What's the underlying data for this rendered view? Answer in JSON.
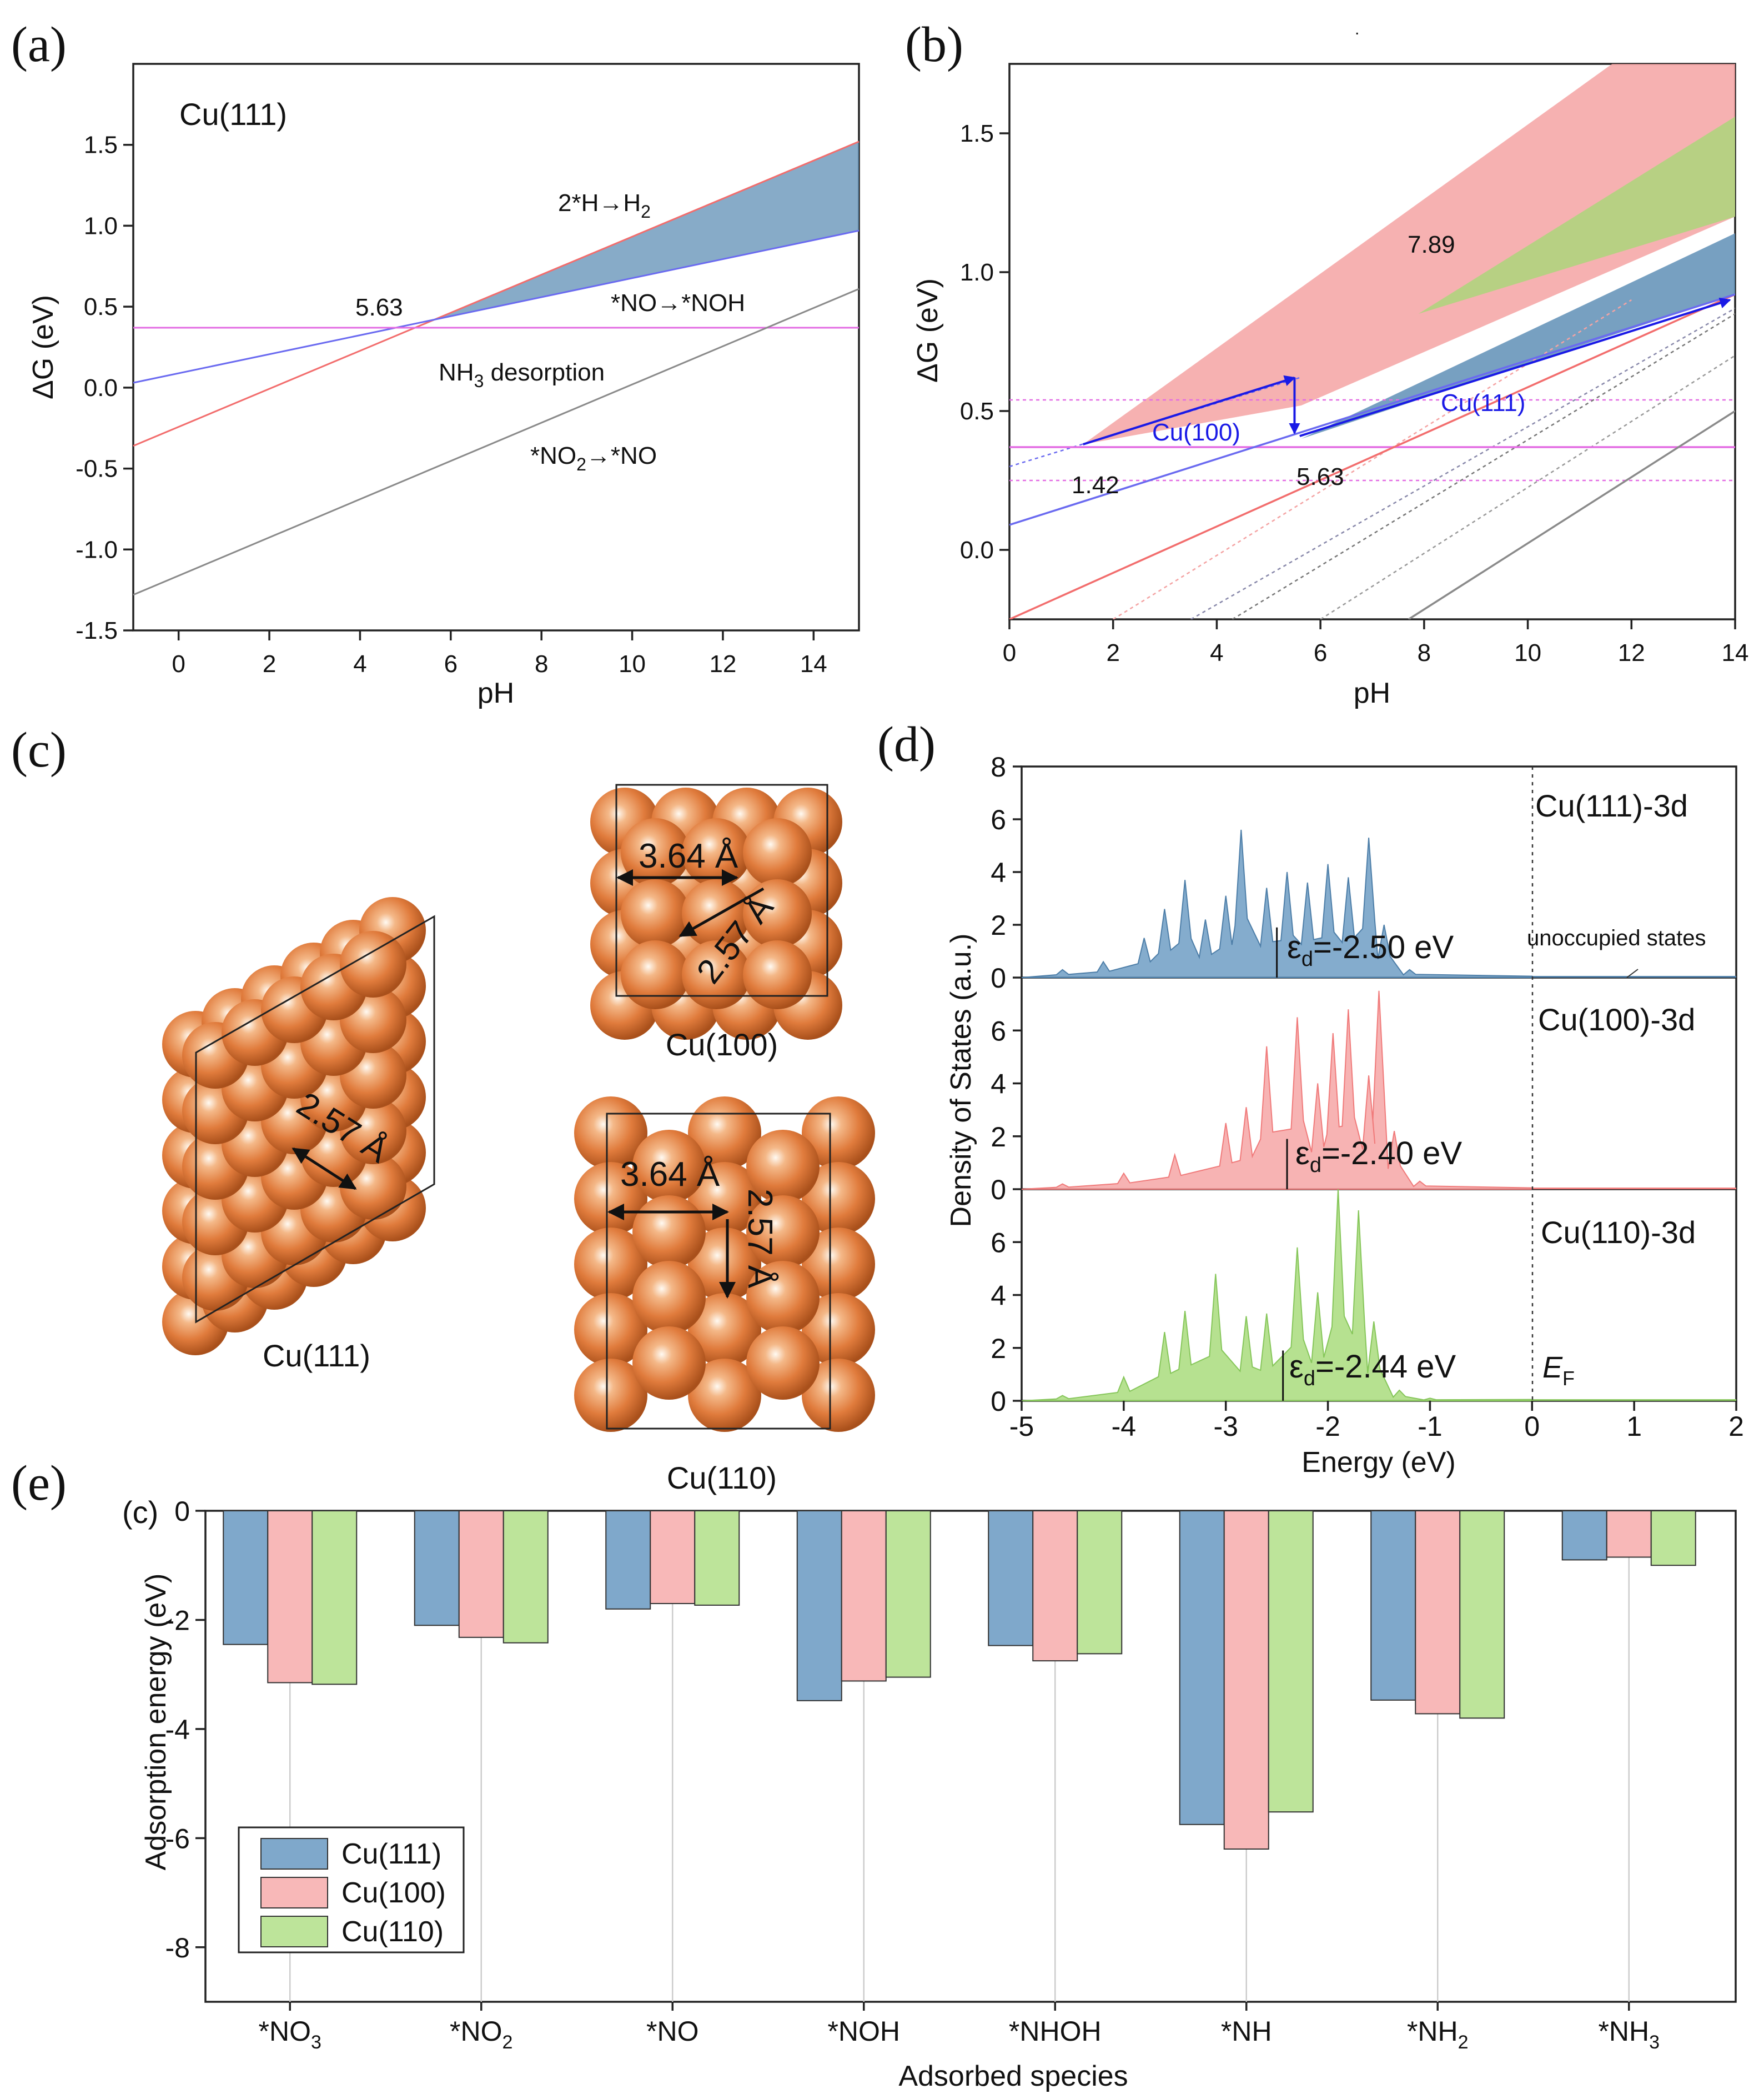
{
  "panels": {
    "a": "(a)",
    "b": "(b)",
    "c": "(c)",
    "d": "(d)",
    "e": "(e)",
    "e_sub": "(c)"
  },
  "colors": {
    "blue": "#5b8db3",
    "blue_line": "#6a6af0",
    "red": "#f4a3a3",
    "red_line": "#f26d6d",
    "green": "#a8d878",
    "gray": "#8a8a8a",
    "magenta": "#e36ce3",
    "dark_blue": "#1a1ae6",
    "cu_sphere": "#e07b3c"
  },
  "chart_data": [
    {
      "id": "a",
      "type": "line",
      "title": "Cu(111)",
      "xlabel": "pH",
      "ylabel": "ΔG (eV)",
      "xlim": [
        -1,
        15
      ],
      "ylim": [
        -1.5,
        2.0
      ],
      "xticks": [
        "0",
        "2",
        "4",
        "6",
        "8",
        "10",
        "12",
        "14"
      ],
      "yticks": [
        "-1.5",
        "-1.0",
        "-0.5",
        "0.0",
        "0.5",
        "1.0",
        "1.5"
      ],
      "series": [
        {
          "name": "2*H→H2",
          "x": [
            -1,
            15
          ],
          "y": [
            -0.36,
            1.52
          ]
        },
        {
          "name": "*NO→*NOH",
          "x": [
            -1,
            15
          ],
          "y": [
            0.03,
            0.97
          ]
        },
        {
          "name": "NH3 desorption",
          "x": [
            -1,
            15
          ],
          "y": [
            0.37,
            0.37
          ]
        },
        {
          "name": "*NO2→*NO",
          "x": [
            -1,
            15
          ],
          "y": [
            -1.28,
            0.61
          ]
        }
      ],
      "annotations": {
        "h2": "2*H→H",
        "h2_sub": "2",
        "noh": "*NO→*NOH",
        "nh3": "NH",
        "nh3_sub": "3",
        "nh3_rest": " desorption",
        "no2": "*NO",
        "no2_sub": "2",
        "no2_rest": "→*NO",
        "crossing": "5.63"
      }
    },
    {
      "id": "b",
      "type": "line",
      "xlabel": "pH",
      "ylabel": "ΔG (eV)",
      "xlim": [
        0,
        14
      ],
      "ylim": [
        -0.25,
        1.75
      ],
      "xticks": [
        "0",
        "2",
        "4",
        "6",
        "8",
        "10",
        "12",
        "14"
      ],
      "yticks": [
        "0.0",
        "0.5",
        "1.0",
        "1.5"
      ],
      "annotations": {
        "val_789": "7.89",
        "val_142": "1.42",
        "val_563": "5.63",
        "cu100": "Cu(100)",
        "cu111": "Cu(111)"
      },
      "series": [
        {
          "name": "NH3 desorption",
          "x": [
            0,
            14
          ],
          "y": [
            0.37,
            0.37
          ]
        },
        {
          "name": "2*H→H2 Cu(111)",
          "x": [
            0,
            14
          ],
          "y": [
            -0.25,
            0.92
          ]
        },
        {
          "name": "*NO→*NOH Cu(111)",
          "x": [
            0,
            14
          ],
          "y": [
            0.09,
            0.92
          ]
        },
        {
          "name": "*NO2→*NO",
          "x": [
            7.7,
            14
          ],
          "y": [
            -0.25,
            0.5
          ]
        }
      ]
    },
    {
      "id": "d",
      "type": "area",
      "xlabel": "Energy (eV)",
      "ylabel": "Density of States (a.u.)",
      "xlim": [
        -5,
        2
      ],
      "ylim": [
        0,
        8
      ],
      "xticks": [
        "-5",
        "-4",
        "-3",
        "-2",
        "-1",
        "0",
        "1",
        "2"
      ],
      "yticks": [
        "0",
        "2",
        "4",
        "6",
        "8"
      ],
      "series": [
        {
          "name": "Cu(111)-3d",
          "d_band_center": "ε",
          "d_sub": "d",
          "d_value": "=-2.50 eV"
        },
        {
          "name": "Cu(100)-3d",
          "d_band_center": "ε",
          "d_sub": "d",
          "d_value": "=-2.40 eV"
        },
        {
          "name": "Cu(110)-3d",
          "d_band_center": "ε",
          "d_sub": "d",
          "d_value": "=-2.44 eV"
        }
      ],
      "annotations": {
        "unoccupied": "unoccupied states",
        "ef": "E",
        "ef_sub": "F"
      }
    },
    {
      "id": "e",
      "type": "bar",
      "xlabel": "Adsorbed species",
      "ylabel": "Adsorption energy (eV)",
      "ylim": [
        -9,
        0
      ],
      "yticks": [
        "0",
        "-2",
        "-4",
        "-6",
        "-8"
      ],
      "categories": [
        "*NO3",
        "*NO2",
        "*NO",
        "*NOH",
        "*NHOH",
        "*NH",
        "*NH2",
        "*NH3"
      ],
      "category_labels": [
        {
          "main": "*NO",
          "sub": "3"
        },
        {
          "main": "*NO",
          "sub": "2"
        },
        {
          "main": "*NO",
          "sub": ""
        },
        {
          "main": "*NOH",
          "sub": ""
        },
        {
          "main": "*NHOH",
          "sub": ""
        },
        {
          "main": "*NH",
          "sub": ""
        },
        {
          "main": "*NH",
          "sub": "2"
        },
        {
          "main": "*NH",
          "sub": "3"
        }
      ],
      "series": [
        {
          "name": "Cu(111)",
          "values": [
            -2.45,
            -2.1,
            -1.8,
            -3.48,
            -2.47,
            -5.75,
            -3.47,
            -0.9
          ]
        },
        {
          "name": "Cu(100)",
          "values": [
            -3.15,
            -2.32,
            -1.7,
            -3.12,
            -2.75,
            -6.2,
            -3.72,
            -0.85
          ]
        },
        {
          "name": "Cu(110)",
          "values": [
            -3.18,
            -2.42,
            -1.73,
            -3.05,
            -2.62,
            -5.52,
            -3.8,
            -1.0
          ]
        }
      ]
    }
  ],
  "structures": {
    "cu111": {
      "label": "Cu(111)",
      "dist": "2.57 Å"
    },
    "cu100": {
      "label": "Cu(100)",
      "dist1": "3.64 Å",
      "dist2": "2.57 Å"
    },
    "cu110": {
      "label": "Cu(110)",
      "dist1": "3.64 Å",
      "dist2": "2.57 Å"
    }
  }
}
